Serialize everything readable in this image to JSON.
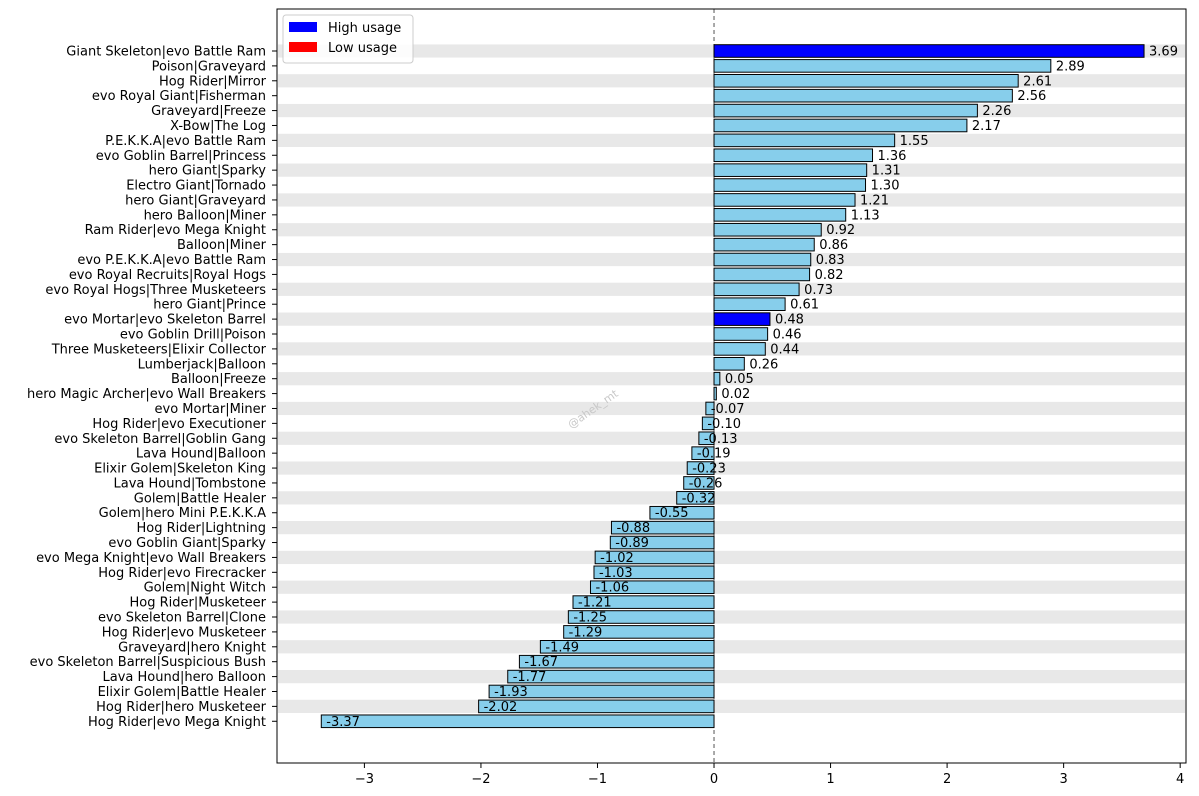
{
  "chart_data": {
    "type": "bar",
    "orientation": "horizontal",
    "title": "",
    "xlabel": "",
    "ylabel": "",
    "xlim": [
      -3.75,
      4.05
    ],
    "xticks": [
      -3,
      -2,
      -1,
      0,
      1,
      2,
      3,
      4
    ],
    "xtick_labels": [
      "−3",
      "−2",
      "−1",
      "0",
      "1",
      "2",
      "3",
      "4"
    ],
    "zero_line": "dashed",
    "row_striping": true,
    "legend": {
      "placement": "top-left",
      "entries": [
        {
          "label": "High usage",
          "color": "#0000ff"
        },
        {
          "label": "Low usage",
          "color": "#ff0000"
        }
      ]
    },
    "colors": {
      "default_bar": "#87ceeb",
      "high_usage": "#0000ff",
      "stripe": "#e8e8e8",
      "bar_edge": "#000000"
    },
    "watermark": "@ahek_mt",
    "bars": [
      {
        "label": "Giant Skeleton|evo Battle Ram",
        "value": 3.69,
        "value_label": "3.69",
        "highlight": "high"
      },
      {
        "label": "Poison|Graveyard",
        "value": 2.89,
        "value_label": "2.89"
      },
      {
        "label": "Hog Rider|Mirror",
        "value": 2.61,
        "value_label": "2.61"
      },
      {
        "label": "evo Royal Giant|Fisherman",
        "value": 2.56,
        "value_label": "2.56"
      },
      {
        "label": "Graveyard|Freeze",
        "value": 2.26,
        "value_label": "2.26"
      },
      {
        "label": "X-Bow|The Log",
        "value": 2.17,
        "value_label": "2.17"
      },
      {
        "label": "P.E.K.K.A|evo Battle Ram",
        "value": 1.55,
        "value_label": "1.55"
      },
      {
        "label": "evo Goblin Barrel|Princess",
        "value": 1.36,
        "value_label": "1.36"
      },
      {
        "label": "hero Giant|Sparky",
        "value": 1.31,
        "value_label": "1.31"
      },
      {
        "label": "Electro Giant|Tornado",
        "value": 1.3,
        "value_label": "1.30"
      },
      {
        "label": "hero Giant|Graveyard",
        "value": 1.21,
        "value_label": "1.21"
      },
      {
        "label": "hero Balloon|Miner",
        "value": 1.13,
        "value_label": "1.13"
      },
      {
        "label": "Ram Rider|evo Mega Knight",
        "value": 0.92,
        "value_label": "0.92"
      },
      {
        "label": "Balloon|Miner",
        "value": 0.86,
        "value_label": "0.86"
      },
      {
        "label": "evo P.E.K.K.A|evo Battle Ram",
        "value": 0.83,
        "value_label": "0.83"
      },
      {
        "label": "evo Royal Recruits|Royal Hogs",
        "value": 0.82,
        "value_label": "0.82"
      },
      {
        "label": "evo Royal Hogs|Three Musketeers",
        "value": 0.73,
        "value_label": "0.73"
      },
      {
        "label": "hero Giant|Prince",
        "value": 0.61,
        "value_label": "0.61"
      },
      {
        "label": "evo Mortar|evo Skeleton Barrel",
        "value": 0.48,
        "value_label": "0.48",
        "highlight": "high"
      },
      {
        "label": "evo Goblin Drill|Poison",
        "value": 0.46,
        "value_label": "0.46"
      },
      {
        "label": "Three Musketeers|Elixir Collector",
        "value": 0.44,
        "value_label": "0.44"
      },
      {
        "label": "Lumberjack|Balloon",
        "value": 0.26,
        "value_label": "0.26"
      },
      {
        "label": "Balloon|Freeze",
        "value": 0.05,
        "value_label": "0.05"
      },
      {
        "label": "hero Magic Archer|evo Wall Breakers",
        "value": 0.02,
        "value_label": "0.02"
      },
      {
        "label": "evo Mortar|Miner",
        "value": -0.07,
        "value_label": "-0.07"
      },
      {
        "label": "Hog Rider|evo Executioner",
        "value": -0.1,
        "value_label": "-0.10"
      },
      {
        "label": "evo Skeleton Barrel|Goblin Gang",
        "value": -0.13,
        "value_label": "-0.13"
      },
      {
        "label": "Lava Hound|Balloon",
        "value": -0.19,
        "value_label": "-0.19"
      },
      {
        "label": "Elixir Golem|Skeleton King",
        "value": -0.23,
        "value_label": "-0.23"
      },
      {
        "label": "Lava Hound|Tombstone",
        "value": -0.26,
        "value_label": "-0.26"
      },
      {
        "label": "Golem|Battle Healer",
        "value": -0.32,
        "value_label": "-0.32"
      },
      {
        "label": "Golem|hero Mini P.E.K.K.A",
        "value": -0.55,
        "value_label": "-0.55"
      },
      {
        "label": "Hog Rider|Lightning",
        "value": -0.88,
        "value_label": "-0.88"
      },
      {
        "label": "evo Goblin Giant|Sparky",
        "value": -0.89,
        "value_label": "-0.89"
      },
      {
        "label": "evo Mega Knight|evo Wall Breakers",
        "value": -1.02,
        "value_label": "-1.02"
      },
      {
        "label": "Hog Rider|evo Firecracker",
        "value": -1.03,
        "value_label": "-1.03"
      },
      {
        "label": "Golem|Night Witch",
        "value": -1.06,
        "value_label": "-1.06"
      },
      {
        "label": "Hog Rider|Musketeer",
        "value": -1.21,
        "value_label": "-1.21"
      },
      {
        "label": "evo Skeleton Barrel|Clone",
        "value": -1.25,
        "value_label": "-1.25"
      },
      {
        "label": "Hog Rider|evo Musketeer",
        "value": -1.29,
        "value_label": "-1.29"
      },
      {
        "label": "Graveyard|hero Knight",
        "value": -1.49,
        "value_label": "-1.49"
      },
      {
        "label": "evo Skeleton Barrel|Suspicious Bush",
        "value": -1.67,
        "value_label": "-1.67"
      },
      {
        "label": "Lava Hound|hero Balloon",
        "value": -1.77,
        "value_label": "-1.77"
      },
      {
        "label": "Elixir Golem|Battle Healer",
        "value": -1.93,
        "value_label": "-1.93"
      },
      {
        "label": "Hog Rider|hero Musketeer",
        "value": -2.02,
        "value_label": "-2.02"
      },
      {
        "label": "Hog Rider|evo Mega Knight",
        "value": -3.37,
        "value_label": "-3.37"
      }
    ]
  }
}
